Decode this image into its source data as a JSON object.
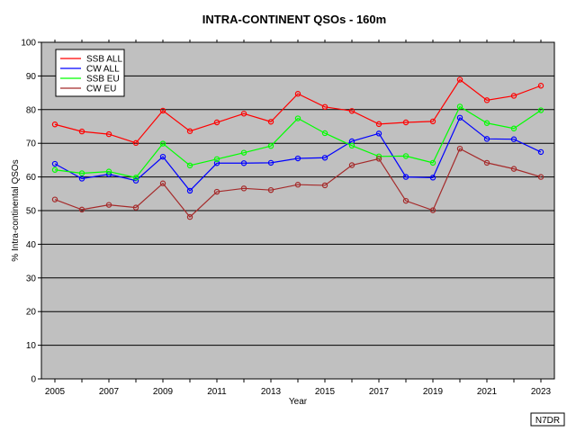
{
  "chart_data": {
    "type": "line",
    "title": "INTRA-CONTINENT QSOs - 160m",
    "xlabel": "Year",
    "ylabel": "% Intra-continental QSOs",
    "xlim": [
      2004.5,
      2023.5
    ],
    "ylim": [
      0,
      100
    ],
    "x_ticks": [
      2005,
      2007,
      2009,
      2011,
      2013,
      2015,
      2017,
      2019,
      2021,
      2023
    ],
    "y_ticks": [
      0,
      10,
      20,
      30,
      40,
      50,
      60,
      70,
      80,
      90,
      100
    ],
    "grid": true,
    "legend_position": "top-left",
    "x": [
      2005,
      2006,
      2007,
      2008,
      2009,
      2010,
      2011,
      2012,
      2013,
      2014,
      2015,
      2016,
      2017,
      2018,
      2019,
      2020,
      2021,
      2022,
      2023
    ],
    "series": [
      {
        "name": "SSB ALL",
        "color": "#ff0000",
        "values": [
          75.6,
          73.5,
          72.7,
          70.1,
          79.7,
          73.6,
          76.2,
          78.8,
          76.4,
          84.7,
          80.8,
          79.6,
          75.7,
          76.2,
          76.5,
          88.9,
          82.8,
          84.1,
          87.1
        ]
      },
      {
        "name": "CW ALL",
        "color": "#0000ff",
        "values": [
          63.9,
          59.5,
          60.8,
          58.9,
          66.0,
          55.9,
          64.1,
          64.1,
          64.2,
          65.5,
          65.7,
          70.6,
          72.9,
          60.0,
          59.8,
          77.6,
          71.3,
          71.2,
          67.4
        ]
      },
      {
        "name": "SSB EU",
        "color": "#00ff00",
        "values": [
          62.1,
          61.1,
          61.6,
          59.8,
          69.9,
          63.4,
          65.3,
          67.2,
          69.2,
          77.4,
          73.0,
          69.3,
          66.1,
          66.2,
          64.2,
          80.9,
          76.0,
          74.4,
          79.8
        ]
      },
      {
        "name": "CW EU",
        "color": "#a52a2a",
        "values": [
          53.3,
          50.3,
          51.7,
          50.9,
          58.1,
          48.1,
          55.6,
          56.6,
          56.1,
          57.7,
          57.5,
          63.5,
          65.4,
          52.9,
          50.1,
          68.4,
          64.2,
          62.4,
          60.0
        ]
      }
    ]
  },
  "credit": "N7DR",
  "colors": {
    "plot_bg": "#c0c0c0",
    "grid": "#000000",
    "border": "#000000"
  }
}
